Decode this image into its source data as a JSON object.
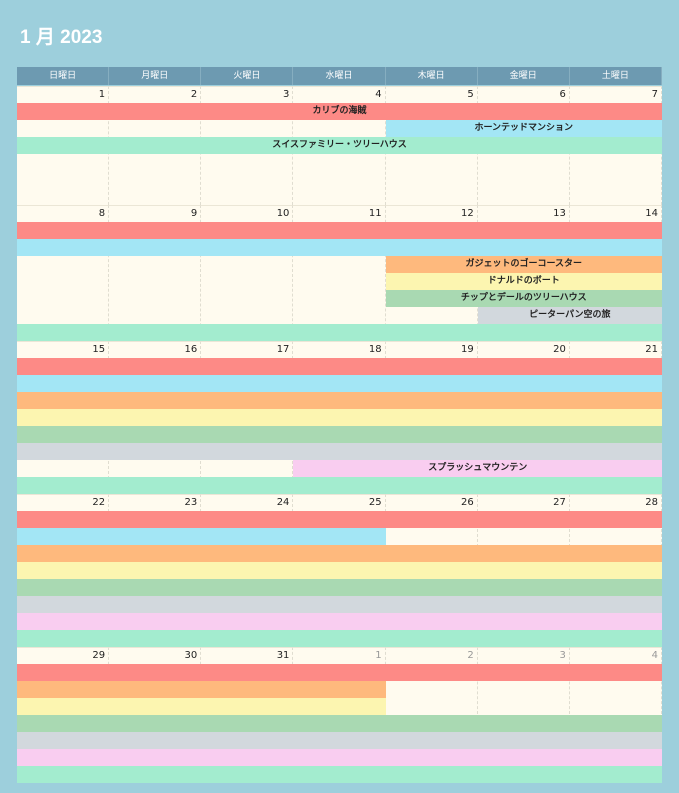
{
  "header": {
    "title": "1 月 2023"
  },
  "weekdays": [
    "日曜日",
    "月曜日",
    "火曜日",
    "水曜日",
    "木曜日",
    "金曜日",
    "土曜日"
  ],
  "weeks": [
    {
      "days": [
        1,
        2,
        3,
        4,
        5,
        6,
        7
      ],
      "events": [
        "カリブの海賊",
        "ホーンテッドマンション",
        "スイスファミリー・ツリーハウス"
      ]
    },
    {
      "days": [
        8,
        9,
        10,
        11,
        12,
        13,
        14
      ],
      "events": [
        "ガジェットのゴーコースター",
        "ドナルドのボート",
        "チップとデールのツリーハウス",
        "ピーターパン空の旅"
      ]
    },
    {
      "days": [
        15,
        16,
        17,
        18,
        19,
        20,
        21
      ],
      "events": [
        "スプラッシュマウンテン"
      ]
    },
    {
      "days": [
        22,
        23,
        24,
        25,
        26,
        27,
        28
      ],
      "events": []
    },
    {
      "days": [
        29,
        30,
        31,
        1,
        2,
        3,
        4
      ],
      "events": []
    }
  ]
}
